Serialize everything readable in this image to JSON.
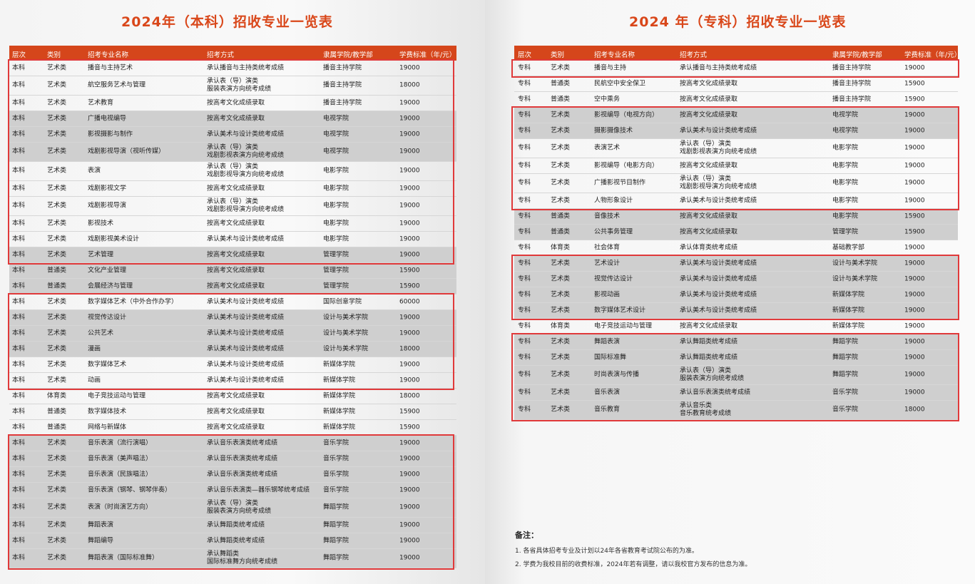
{
  "left": {
    "title": "2024年（本科）招收专业一览表",
    "headers": [
      "层次",
      "类别",
      "招考专业名称",
      "招考方式",
      "隶属学院/教学部",
      "学费标准（年/元）"
    ],
    "rows": [
      [
        "本科",
        "艺术类",
        "播音与主持艺术",
        "承认播音与主持类统考成绩",
        "播音主持学院",
        "19000"
      ],
      [
        "本科",
        "艺术类",
        "航空服务艺术与管理",
        "承认表（导）演类\n服装表演方向统考成绩",
        "播音主持学院",
        "18000"
      ],
      [
        "本科",
        "艺术类",
        "艺术教育",
        "按高考文化成绩录取",
        "播音主持学院",
        "19000"
      ],
      [
        "本科",
        "艺术类",
        "广播电视编导",
        "按高考文化成绩录取",
        "电视学院",
        "19000"
      ],
      [
        "本科",
        "艺术类",
        "影视摄影与制作",
        "承认美术与设计类统考成绩",
        "电视学院",
        "19000"
      ],
      [
        "本科",
        "艺术类",
        "戏剧影视导演（视听传媒）",
        "承认表（导）演类\n戏剧影视表演方向统考成绩",
        "电视学院",
        "19000"
      ],
      [
        "本科",
        "艺术类",
        "表演",
        "承认表（导）演类\n戏剧影视导演方向统考成绩",
        "电影学院",
        "19000"
      ],
      [
        "本科",
        "艺术类",
        "戏剧影视文学",
        "按高考文化成绩录取",
        "电影学院",
        "19000"
      ],
      [
        "本科",
        "艺术类",
        "戏剧影视导演",
        "承认表（导）演类\n戏剧影视导演方向统考成绩",
        "电影学院",
        "19000"
      ],
      [
        "本科",
        "艺术类",
        "影视技术",
        "按高考文化成绩录取",
        "电影学院",
        "19000"
      ],
      [
        "本科",
        "艺术类",
        "戏剧影视美术设计",
        "承认美术与设计类统考成绩",
        "电影学院",
        "19000"
      ],
      [
        "本科",
        "艺术类",
        "艺术管理",
        "按高考文化成绩录取",
        "管理学院",
        "19000"
      ],
      [
        "本科",
        "普通类",
        "文化产业管理",
        "按高考文化成绩录取",
        "管理学院",
        "15900"
      ],
      [
        "本科",
        "普通类",
        "会展经济与管理",
        "按高考文化成绩录取",
        "管理学院",
        "15900"
      ],
      [
        "本科",
        "艺术类",
        "数字媒体艺术（中外合作办学）",
        "承认美术与设计类统考成绩",
        "国际创意学院",
        "60000"
      ],
      [
        "本科",
        "艺术类",
        "视觉传达设计",
        "承认美术与设计类统考成绩",
        "设计与美术学院",
        "19000"
      ],
      [
        "本科",
        "艺术类",
        "公共艺术",
        "承认美术与设计类统考成绩",
        "设计与美术学院",
        "19000"
      ],
      [
        "本科",
        "艺术类",
        "漫画",
        "承认美术与设计类统考成绩",
        "设计与美术学院",
        "18000"
      ],
      [
        "本科",
        "艺术类",
        "数字媒体艺术",
        "承认美术与设计类统考成绩",
        "新媒体学院",
        "19000"
      ],
      [
        "本科",
        "艺术类",
        "动画",
        "承认美术与设计类统考成绩",
        "新媒体学院",
        "19000"
      ],
      [
        "本科",
        "体育类",
        "电子竞技运动与管理",
        "按高考文化成绩录取",
        "新媒体学院",
        "18000"
      ],
      [
        "本科",
        "普通类",
        "数字媒体技术",
        "按高考文化成绩录取",
        "新媒体学院",
        "15900"
      ],
      [
        "本科",
        "普通类",
        "网络与新媒体",
        "按高考文化成绩录取",
        "新媒体学院",
        "15900"
      ],
      [
        "本科",
        "艺术类",
        "音乐表演（流行演唱）",
        "承认音乐表演类统考成绩",
        "音乐学院",
        "19000"
      ],
      [
        "本科",
        "艺术类",
        "音乐表演（美声唱法）",
        "承认音乐表演类统考成绩",
        "音乐学院",
        "19000"
      ],
      [
        "本科",
        "艺术类",
        "音乐表演（民族唱法）",
        "承认音乐表演类统考成绩",
        "音乐学院",
        "19000"
      ],
      [
        "本科",
        "艺术类",
        "音乐表演（钢琴、钢琴伴奏）",
        "承认音乐表演类—器乐钢琴统考成绩",
        "音乐学院",
        "19000"
      ],
      [
        "本科",
        "艺术类",
        "表演（时尚演艺方向）",
        "承认表（导）演类\n服装表演方向统考成绩",
        "舞蹈学院",
        "19000"
      ],
      [
        "本科",
        "艺术类",
        "舞蹈表演",
        "承认舞蹈类统考成绩",
        "舞蹈学院",
        "19000"
      ],
      [
        "本科",
        "艺术类",
        "舞蹈编导",
        "承认舞蹈类统考成绩",
        "舞蹈学院",
        "19000"
      ],
      [
        "本科",
        "艺术类",
        "舞蹈表演（国际标准舞）",
        "承认舞蹈类\n国际标准舞方向统考成绩",
        "舞蹈学院",
        "19000"
      ]
    ]
  },
  "right": {
    "title": "2024 年（专科）招收专业一览表",
    "headers": [
      "层次",
      "类别",
      "招考专业名称",
      "招考方式",
      "隶属学院/教学部",
      "学费标准（年/元）"
    ],
    "rows": [
      [
        "专科",
        "艺术类",
        "播音与主持",
        "承认播音与主持类统考成绩",
        "播音主持学院",
        "19000"
      ],
      [
        "专科",
        "普通类",
        "民航空中安全保卫",
        "按高考文化成绩录取",
        "播音主持学院",
        "15900"
      ],
      [
        "专科",
        "普通类",
        "空中乘务",
        "按高考文化成绩录取",
        "播音主持学院",
        "15900"
      ],
      [
        "专科",
        "艺术类",
        "影视编导（电视方向）",
        "按高考文化成绩录取",
        "电视学院",
        "19000"
      ],
      [
        "专科",
        "艺术类",
        "摄影摄像技术",
        "承认美术与设计类统考成绩",
        "电视学院",
        "19000"
      ],
      [
        "专科",
        "艺术类",
        "表演艺术",
        "承认表（导）演类\n戏剧影视表演方向统考成绩",
        "电影学院",
        "19000"
      ],
      [
        "专科",
        "艺术类",
        "影视编导（电影方向）",
        "按高考文化成绩录取",
        "电影学院",
        "19000"
      ],
      [
        "专科",
        "艺术类",
        "广播影视节目制作",
        "承认表（导）演类\n戏剧影视导演方向统考成绩",
        "电影学院",
        "19000"
      ],
      [
        "专科",
        "艺术类",
        "人物形象设计",
        "承认美术与设计类统考成绩",
        "电影学院",
        "19000"
      ],
      [
        "专科",
        "普通类",
        "音像技术",
        "按高考文化成绩录取",
        "电影学院",
        "15900"
      ],
      [
        "专科",
        "普通类",
        "公共事务管理",
        "按高考文化成绩录取",
        "管理学院",
        "15900"
      ],
      [
        "专科",
        "体育类",
        "社会体育",
        "承认体育类统考成绩",
        "基础教学部",
        "19000"
      ],
      [
        "专科",
        "艺术类",
        "艺术设计",
        "承认美术与设计类统考成绩",
        "设计与美术学院",
        "19000"
      ],
      [
        "专科",
        "艺术类",
        "视觉传达设计",
        "承认美术与设计类统考成绩",
        "设计与美术学院",
        "19000"
      ],
      [
        "专科",
        "艺术类",
        "影视动画",
        "承认美术与设计类统考成绩",
        "新媒体学院",
        "19000"
      ],
      [
        "专科",
        "艺术类",
        "数字媒体艺术设计",
        "承认美术与设计类统考成绩",
        "新媒体学院",
        "19000"
      ],
      [
        "专科",
        "体育类",
        "电子竞技运动与管理",
        "按高考文化成绩录取",
        "新媒体学院",
        "19000"
      ],
      [
        "专科",
        "艺术类",
        "舞蹈表演",
        "承认舞蹈类统考成绩",
        "舞蹈学院",
        "19000"
      ],
      [
        "专科",
        "艺术类",
        "国际标准舞",
        "承认舞蹈类统考成绩",
        "舞蹈学院",
        "19000"
      ],
      [
        "专科",
        "艺术类",
        "时尚表演与传播",
        "承认表（导）演类\n服装表演方向统考成绩",
        "舞蹈学院",
        "19000"
      ],
      [
        "专科",
        "艺术类",
        "音乐表演",
        "承认音乐表演类统考成绩",
        "音乐学院",
        "19000"
      ],
      [
        "专科",
        "艺术类",
        "音乐教育",
        "承认音乐类\n音乐教育统考成绩",
        "音乐学院",
        "18000"
      ]
    ]
  },
  "notes": {
    "title": "备注：",
    "items": [
      "1. 各省具体招考专业及计划以24年各省教育考试院公布的为准。",
      "2. 学费为我校目前的收费标准，2024年若有调整，请以我校官方发布的信息为准。"
    ]
  }
}
